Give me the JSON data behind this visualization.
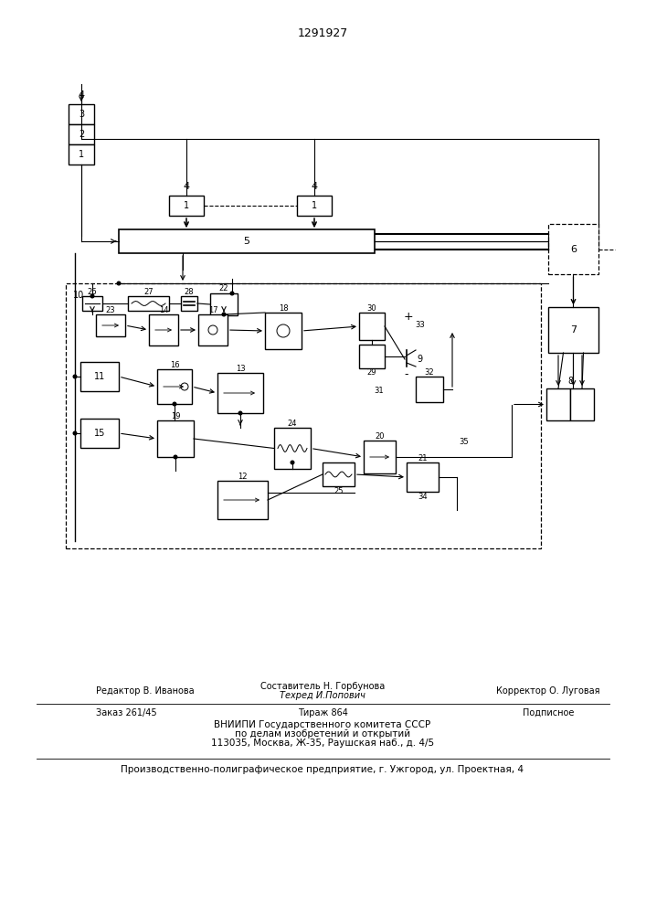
{
  "title": "1291927",
  "bg": "#ffffff",
  "lc": "#000000",
  "footer": {
    "line1_left": "Редактор В. Иванова",
    "line1_center_top": "Составитель Н. Горбунова",
    "line1_center_bot": "Техред И.Попович",
    "line1_right": "Корректор О. Луговая",
    "line2_left": "Заказ 261/45",
    "line2_center": "Тираж 864",
    "line2_right": "Подписное",
    "line3": "ВНИИПИ Государственного комитета СССР",
    "line4": "по делам изобретений и открытий",
    "line5": "113035, Москва, Ж-35, Раушская наб., д. 4/5",
    "line6": "Производственно-полиграфическое предприятие, г. Ужгород, ул. Проектная, 4"
  }
}
